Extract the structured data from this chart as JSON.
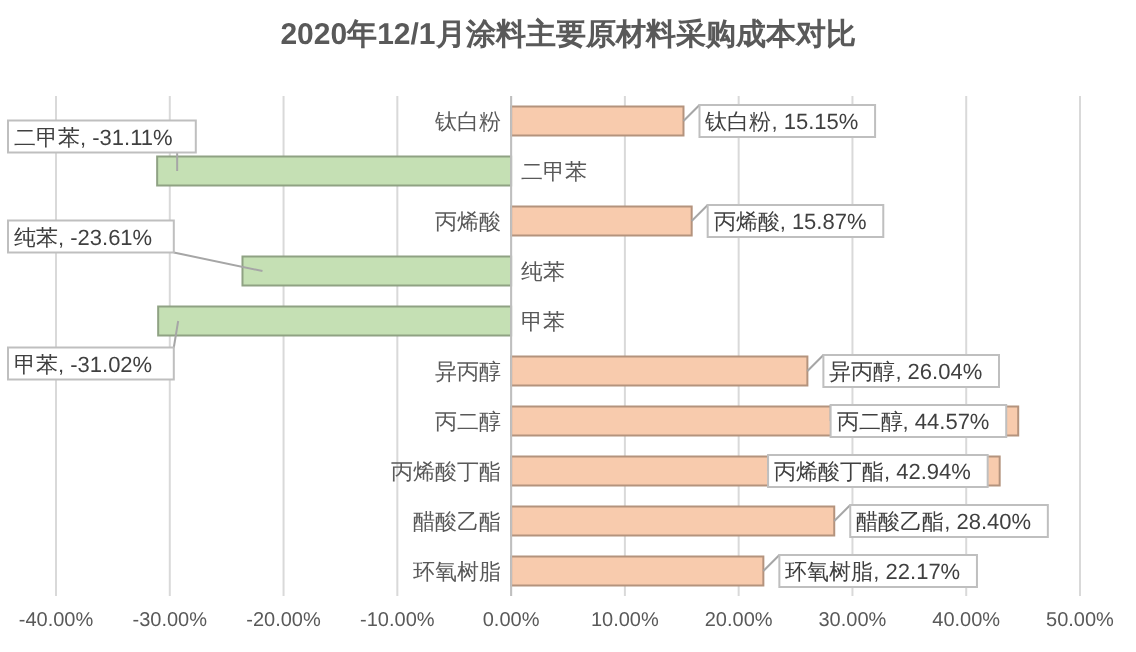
{
  "chart_data": {
    "type": "bar",
    "orientation": "horizontal",
    "title": "2020年12/1月涂料主要原材料采购成本对比",
    "categories": [
      "钛白粉",
      "二甲苯",
      "丙烯酸",
      "纯苯",
      "甲苯",
      "异丙醇",
      "丙二醇",
      "丙烯酸丁酯",
      "醋酸乙酯",
      "环氧树脂"
    ],
    "values": [
      15.15,
      -31.11,
      15.87,
      -23.61,
      -31.02,
      26.04,
      44.57,
      42.94,
      28.4,
      22.17
    ],
    "colors": [
      "#f8cbad",
      "#c5e0b4",
      "#f8cbad",
      "#c5e0b4",
      "#c5e0b4",
      "#f8cbad",
      "#f8cbad",
      "#f8cbad",
      "#f8cbad",
      "#f8cbad"
    ],
    "value_labels": [
      "钛白粉, 15.15%",
      "二甲苯, -31.11%",
      "丙烯酸, 15.87%",
      "纯苯, -23.61%",
      "甲苯, -31.02%",
      "异丙醇, 26.04%",
      "丙二醇, 44.57%",
      "丙烯酸丁酯, 42.94%",
      "醋酸乙酯, 28.40%",
      "环氧树脂, 22.17%"
    ],
    "xlim": [
      -40,
      50
    ],
    "xticks": [
      {
        "value": -40,
        "label": "-40.00%"
      },
      {
        "value": -30,
        "label": "-30.00%"
      },
      {
        "value": -20,
        "label": "-20.00%"
      },
      {
        "value": -10,
        "label": "-10.00%"
      },
      {
        "value": 0,
        "label": "0.00%"
      },
      {
        "value": 10,
        "label": "10.00%"
      },
      {
        "value": 20,
        "label": "20.00%"
      },
      {
        "value": 30,
        "label": "30.00%"
      },
      {
        "value": 40,
        "label": "40.00%"
      },
      {
        "value": 50,
        "label": "50.00%"
      }
    ],
    "grid": "x"
  }
}
